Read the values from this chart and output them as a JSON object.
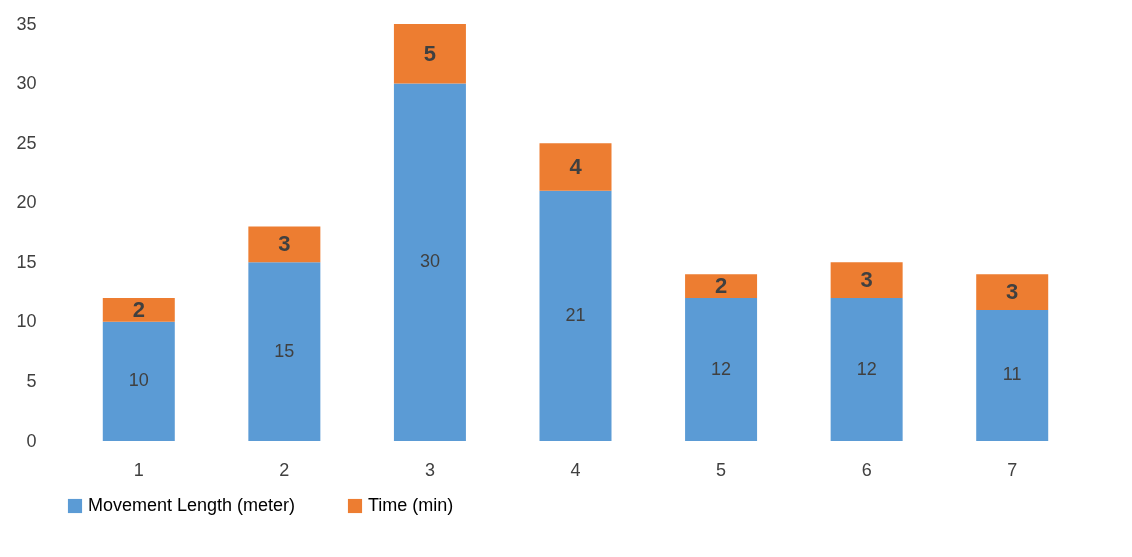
{
  "chart_data": {
    "type": "bar",
    "stacked": true,
    "categories": [
      "1",
      "2",
      "3",
      "4",
      "5",
      "6",
      "7"
    ],
    "series": [
      {
        "name": "Movement Length (meter)",
        "color": "#5b9bd5",
        "values": [
          10,
          15,
          30,
          21,
          12,
          12,
          11
        ]
      },
      {
        "name": "Time (min)",
        "color": "#ed7d31",
        "values": [
          2,
          3,
          5,
          4,
          2,
          3,
          3
        ]
      }
    ],
    "ylim": [
      0,
      35
    ],
    "yticks": [
      0,
      5,
      10,
      15,
      20,
      25,
      30,
      35
    ],
    "grid": false,
    "legend": "bottom",
    "data_labels": true
  }
}
